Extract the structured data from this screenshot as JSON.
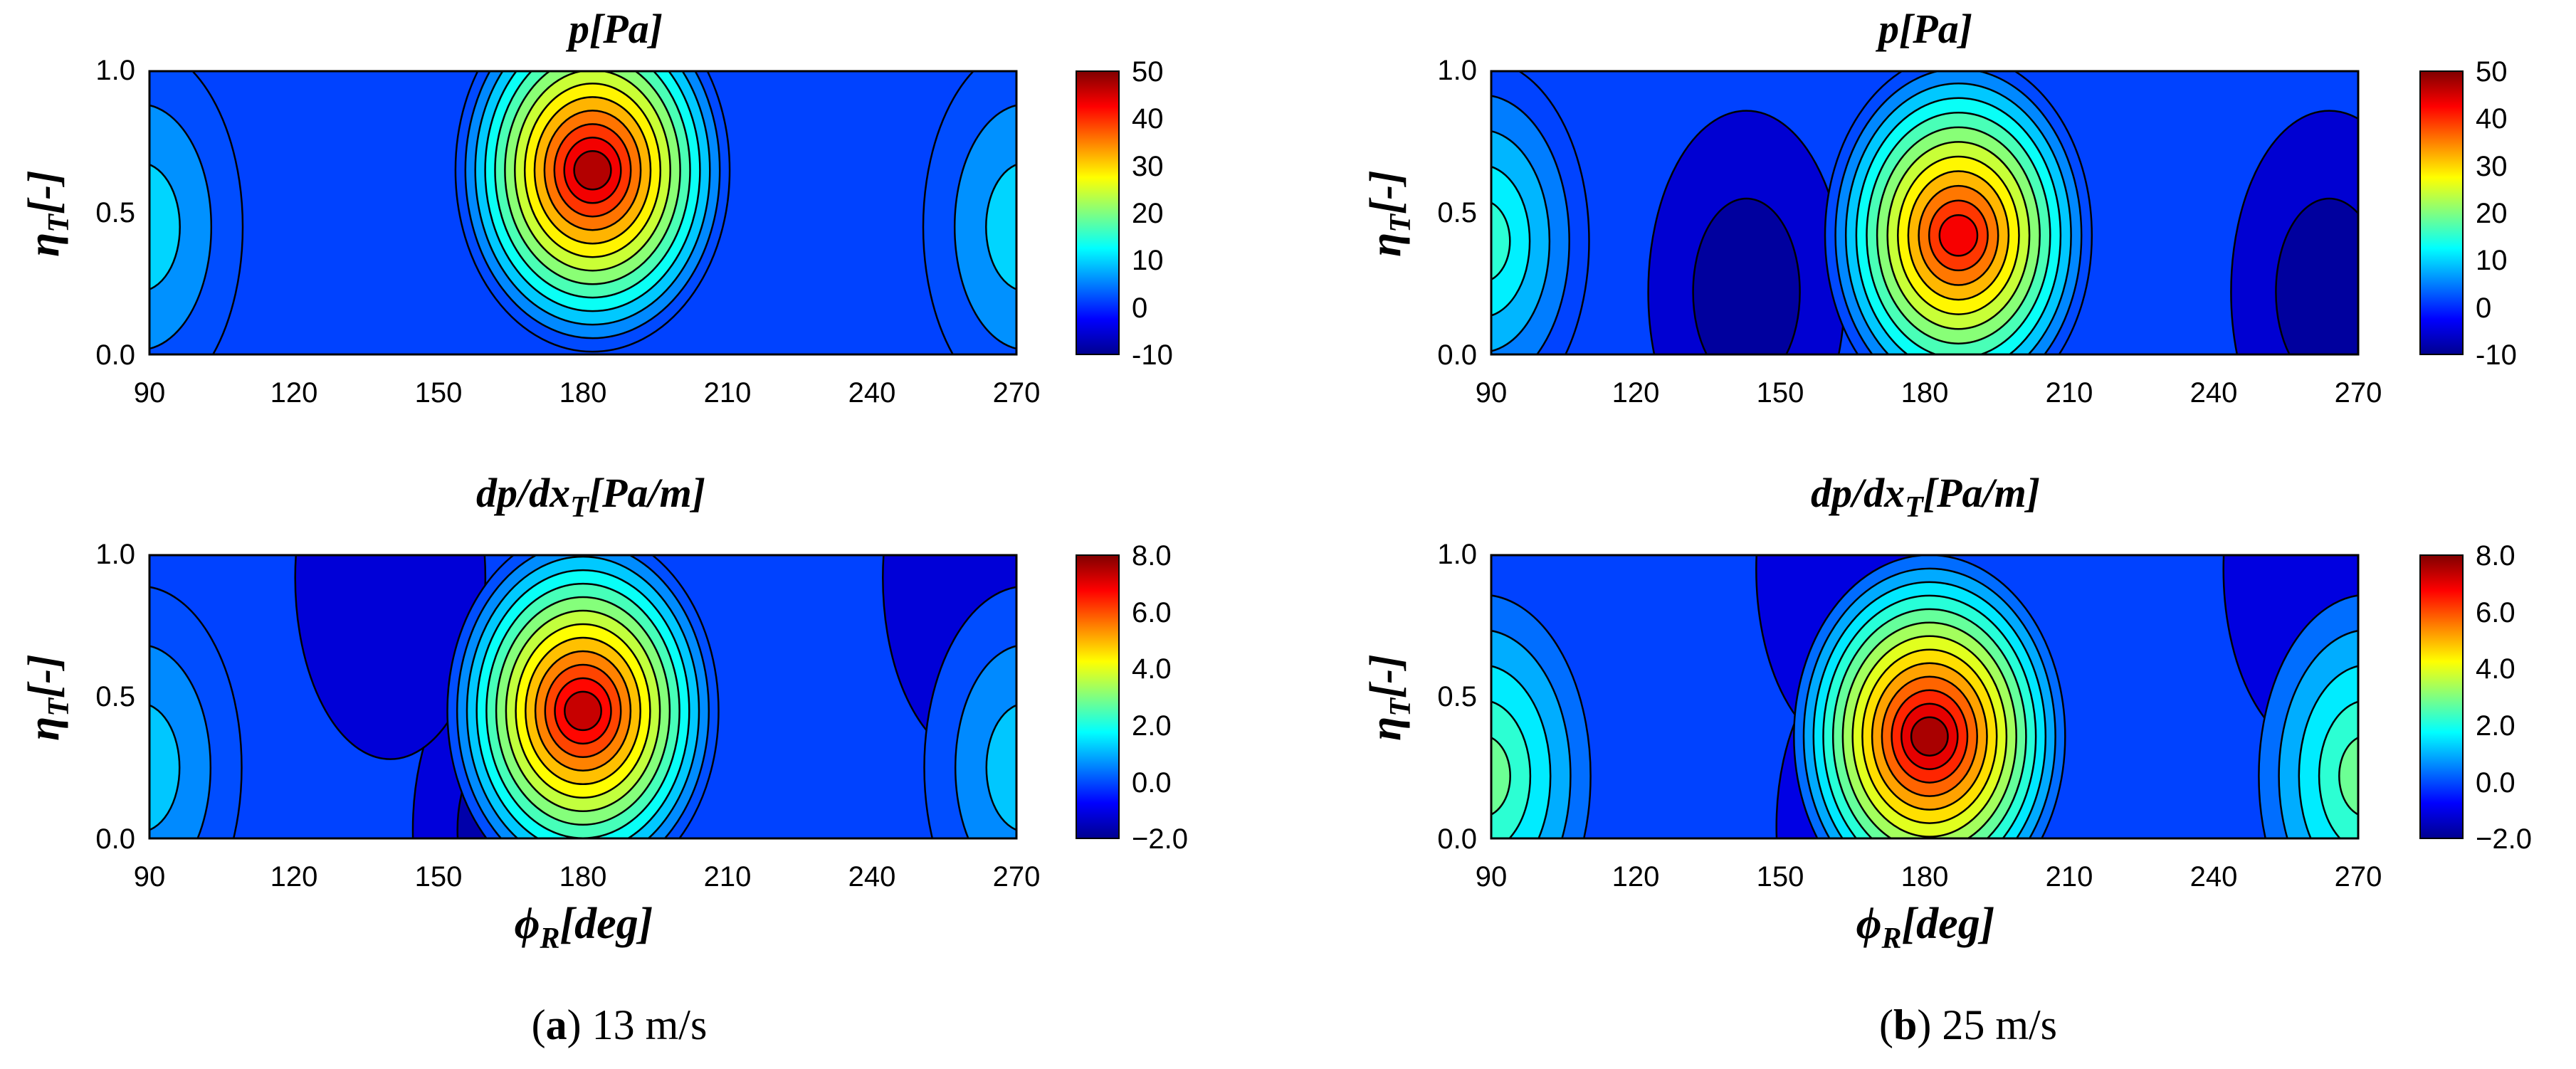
{
  "colors": {
    "colormap": [
      "#00008f",
      "#0000ff",
      "#0080ff",
      "#00ffff",
      "#80ff80",
      "#ffff00",
      "#ff8000",
      "#ff0000",
      "#800000"
    ],
    "background_field": "#0042ff",
    "contour_line": "#000000"
  },
  "captions": [
    {
      "letter": "a",
      "text": " 13 m/s"
    },
    {
      "letter": "b",
      "text": " 25 m/s"
    }
  ],
  "chart_data": [
    {
      "type": "heatmap",
      "title": "p[Pa]",
      "xlabel": "",
      "ylabel": "η_T[-]",
      "ylabel_main": "η",
      "ylabel_sub": "T",
      "ylabel_tail": "[-]",
      "xlim": [
        90,
        270
      ],
      "ylim": [
        0,
        1
      ],
      "xticks": [
        "90",
        "120",
        "150",
        "180",
        "210",
        "240",
        "270"
      ],
      "yticks": [
        "0.0",
        "0.5",
        "1.0"
      ],
      "colorbar": {
        "min": -10,
        "max": 50,
        "ticks": [
          "-10",
          "0",
          "10",
          "20",
          "30",
          "40",
          "50"
        ]
      },
      "peaks": [
        {
          "x": 182,
          "y": 0.65,
          "value": 47
        },
        {
          "x": 88,
          "y": 0.45,
          "value": 10
        },
        {
          "x": 272,
          "y": 0.45,
          "value": 10
        }
      ],
      "base": -2
    },
    {
      "type": "heatmap",
      "title": "p[Pa]",
      "xlabel": "",
      "ylabel": "η_T[-]",
      "ylabel_main": "η",
      "ylabel_sub": "T",
      "ylabel_tail": "[-]",
      "xlim": [
        90,
        270
      ],
      "ylim": [
        0,
        1
      ],
      "xticks": [
        "90",
        "120",
        "150",
        "180",
        "210",
        "240",
        "270"
      ],
      "yticks": [
        "0.0",
        "0.5",
        "1.0"
      ],
      "colorbar": {
        "min": -10,
        "max": 50,
        "ticks": [
          "-10",
          "0",
          "10",
          "20",
          "30",
          "40",
          "50"
        ]
      },
      "peaks": [
        {
          "x": 187,
          "y": 0.42,
          "value": 43
        },
        {
          "x": 88,
          "y": 0.4,
          "value": 15
        },
        {
          "x": 143,
          "y": 0.22,
          "value": -9
        },
        {
          "x": 264,
          "y": 0.22,
          "value": -9
        }
      ],
      "base": -2
    },
    {
      "type": "heatmap",
      "title": "dp/dx_T[Pa/m]",
      "title_main": "dp/dx",
      "title_sub": "T",
      "title_tail": "[Pa/m]",
      "xlabel": "ϕ_R[deg]",
      "xlabel_main": "ϕ",
      "xlabel_sub": "R",
      "xlabel_tail": "[deg]",
      "ylabel": "η_T[-]",
      "ylabel_main": "η",
      "ylabel_sub": "T",
      "ylabel_tail": "[-]",
      "xlim": [
        90,
        270
      ],
      "ylim": [
        0,
        1
      ],
      "xticks": [
        "90",
        "120",
        "150",
        "180",
        "210",
        "240",
        "270"
      ],
      "yticks": [
        "0.0",
        "0.5",
        "1.0"
      ],
      "colorbar": {
        "min": -2.0,
        "max": 8.0,
        "ticks": [
          "−2.0",
          "0.0",
          "2.0",
          "4.0",
          "6.0",
          "8.0"
        ]
      },
      "peaks": [
        {
          "x": 180,
          "y": 0.45,
          "value": 7.3
        },
        {
          "x": 88,
          "y": 0.25,
          "value": 1.2
        },
        {
          "x": 272,
          "y": 0.25,
          "value": 1.2
        },
        {
          "x": 165,
          "y": 0.03,
          "value": -1.7
        },
        {
          "x": 140,
          "y": 0.92,
          "value": -1.2
        },
        {
          "x": 262,
          "y": 0.92,
          "value": -1.2
        }
      ],
      "base": -0.6
    },
    {
      "type": "heatmap",
      "title": "dp/dx_T[Pa/m]",
      "title_main": "dp/dx",
      "title_sub": "T",
      "title_tail": "[Pa/m]",
      "xlabel": "ϕ_R[deg]",
      "xlabel_main": "ϕ",
      "xlabel_sub": "R",
      "xlabel_tail": "[deg]",
      "ylabel": "η_T[-]",
      "ylabel_main": "η",
      "ylabel_sub": "T",
      "ylabel_tail": "[-]",
      "xlim": [
        90,
        270
      ],
      "ylim": [
        0,
        1
      ],
      "xticks": [
        "90",
        "120",
        "150",
        "180",
        "210",
        "240",
        "270"
      ],
      "yticks": [
        "0.0",
        "0.5",
        "1.0"
      ],
      "colorbar": {
        "min": -2.0,
        "max": 8.0,
        "ticks": [
          "−2.0",
          "0.0",
          "2.0",
          "4.0",
          "6.0",
          "8.0"
        ]
      },
      "peaks": [
        {
          "x": 181,
          "y": 0.36,
          "value": 7.6
        },
        {
          "x": 88,
          "y": 0.22,
          "value": 2.8
        },
        {
          "x": 272,
          "y": 0.22,
          "value": 2.8
        },
        {
          "x": 170,
          "y": 0.04,
          "value": -1.8
        },
        {
          "x": 165,
          "y": 0.95,
          "value": -1.1
        },
        {
          "x": 262,
          "y": 0.95,
          "value": -1.1
        }
      ],
      "base": -0.3
    }
  ]
}
